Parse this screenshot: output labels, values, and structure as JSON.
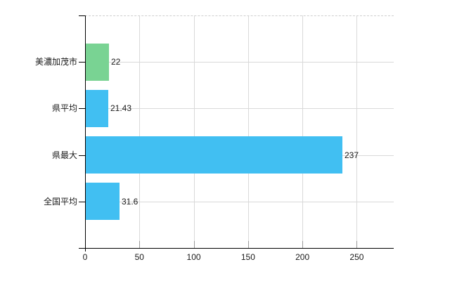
{
  "chart_data": {
    "type": "bar",
    "orientation": "horizontal",
    "title": "",
    "xlabel": "",
    "ylabel": "",
    "categories": [
      "美濃加茂市",
      "県平均",
      "県最大",
      "全国平均"
    ],
    "values": [
      22,
      21.43,
      237,
      31.6
    ],
    "value_labels": [
      "22",
      "21.43",
      "237",
      "31.6"
    ],
    "bar_colors": [
      "#79D393",
      "#41BFF2",
      "#41BFF2",
      "#41BFF2"
    ],
    "x_ticks": [
      0,
      50,
      100,
      150,
      200,
      250
    ],
    "x_tick_labels": [
      "0",
      "50",
      "100",
      "150",
      "200",
      "250"
    ],
    "xlim": [
      0,
      284
    ],
    "grid": true,
    "legend_position": "none",
    "colors": {
      "bar_highlight": "#79D393",
      "bar_default": "#41BFF2",
      "gridline": "#D9D9D9",
      "plot_border_dashed": "#CFCFCF",
      "axis": "#000000",
      "text": "#1A1A1A",
      "background": "#FFFFFF"
    }
  }
}
